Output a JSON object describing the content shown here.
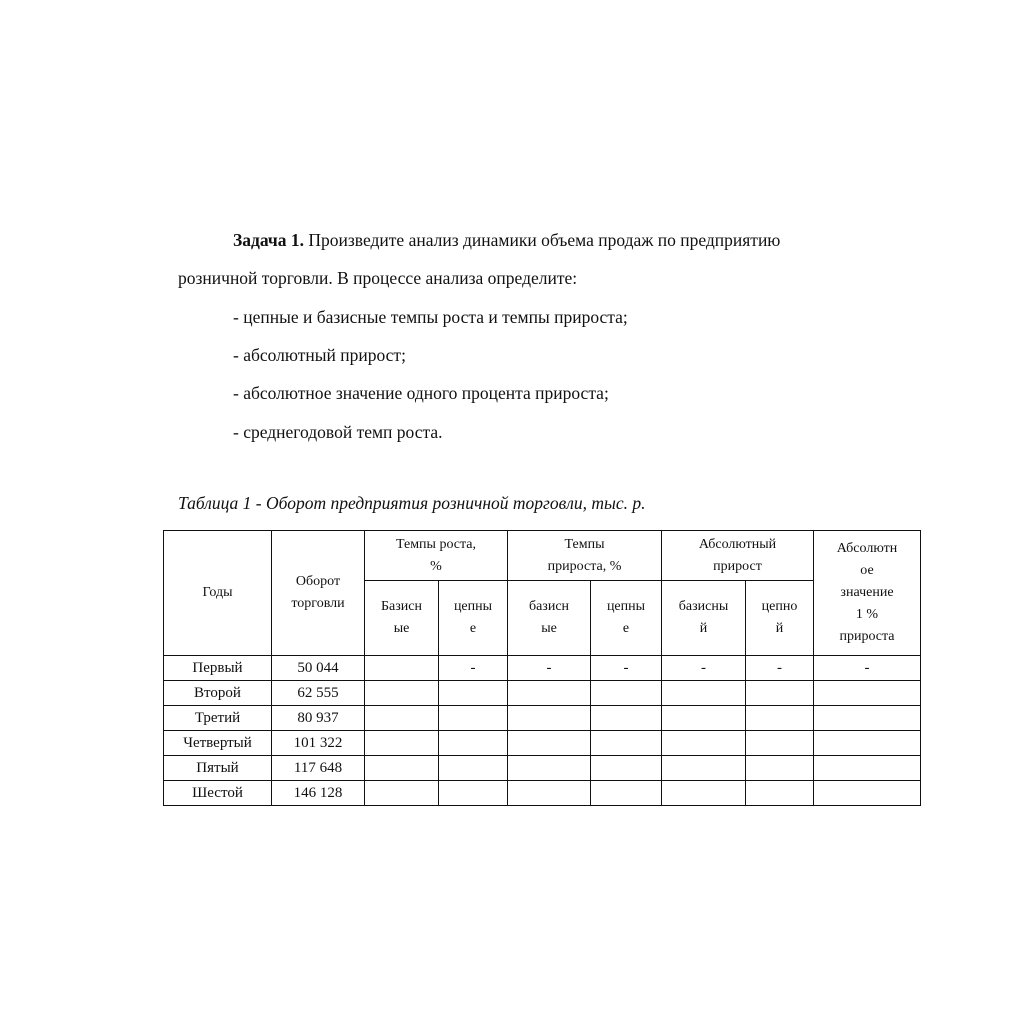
{
  "task": {
    "title": "Задача 1.",
    "intro_line1": " Произведите анализ динамики объема продаж по предприятию",
    "intro_line2": "розничной торговли. В процессе анализа определите:",
    "items": [
      "- цепные и базисные темпы роста и темпы прироста;",
      "- абсолютный прирост;",
      "- абсолютное значение одного процента прироста;",
      "- среднегодовой темп роста."
    ]
  },
  "table": {
    "caption": "Таблица 1 - Оборот предприятия розничной торговли, тыс. р.",
    "headers": {
      "years": "Годы",
      "turnover": "Оборот\nторговли",
      "growth_rate": "Темпы роста,\n%",
      "increase_rate": "Темпы\nприроста, %",
      "abs_increase": "Абсолютный\nприрост",
      "abs_value": "Абсолютн\nое\nзначение\n1 %\nприроста",
      "growth_base": "Базисн\nые",
      "growth_chain": "цепны\nе",
      "inc_base": "базисн\nые",
      "inc_chain": "цепны\nе",
      "abs_base": "базисны\nй",
      "abs_chain": "цепно\nй"
    },
    "rows": [
      {
        "year": "Первый",
        "turnover": "50 044",
        "cells": [
          "",
          "-",
          "-",
          "-",
          "-",
          "-",
          "-"
        ]
      },
      {
        "year": "Второй",
        "turnover": "62 555",
        "cells": [
          "",
          "",
          "",
          "",
          "",
          "",
          ""
        ]
      },
      {
        "year": "Третий",
        "turnover": "80 937",
        "cells": [
          "",
          "",
          "",
          "",
          "",
          "",
          ""
        ]
      },
      {
        "year": "Четвертый",
        "turnover": "101 322",
        "cells": [
          "",
          "",
          "",
          "",
          "",
          "",
          ""
        ]
      },
      {
        "year": "Пятый",
        "turnover": "117 648",
        "cells": [
          "",
          "",
          "",
          "",
          "",
          "",
          ""
        ]
      },
      {
        "year": "Шестой",
        "turnover": "146 128",
        "cells": [
          "",
          "",
          "",
          "",
          "",
          "",
          ""
        ]
      }
    ]
  }
}
